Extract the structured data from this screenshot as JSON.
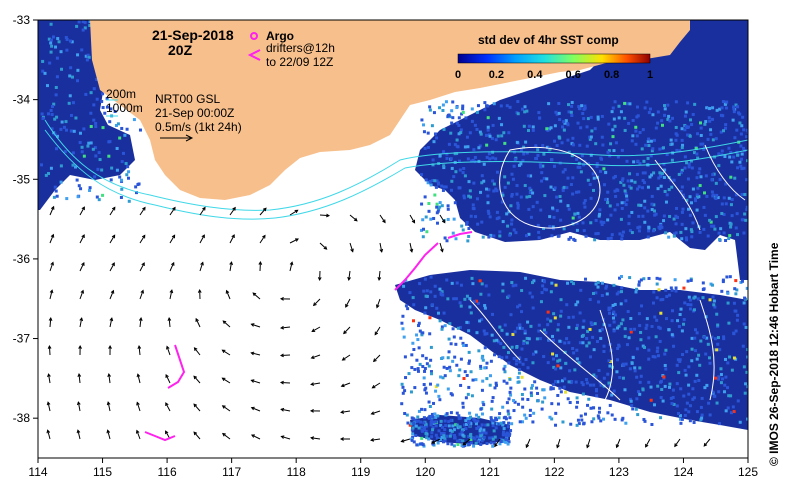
{
  "map": {
    "date_title": "21-Sep-2018",
    "time_title": "20Z",
    "legend_argo_label": "Argo",
    "legend_drifters_label": "drifters@12h",
    "legend_drifters_sub": "to 22/09 12Z",
    "colorbar_title": "std dev of 4hr SST comp",
    "colorbar_ticks": [
      "0",
      "0.2",
      "0.4",
      "0.6",
      "0.8",
      "1"
    ],
    "colorbar_range": [
      0,
      1
    ],
    "depth_200_label": "200m",
    "depth_1000_label": "1000m",
    "nrt_line1": "NRT00 GSL",
    "nrt_line2": "21-Sep 00:00Z",
    "nrt_line3": "0.5m/s (1kt 24h)",
    "credit": "© IMOS 26-Sep-2018 12:46 Hobart Time",
    "x_ticks": [
      "114",
      "115",
      "116",
      "117",
      "118",
      "119",
      "120",
      "121",
      "122",
      "123",
      "124",
      "125"
    ],
    "y_ticks": [
      "-33",
      "-34",
      "-35",
      "-36",
      "-37",
      "-38"
    ],
    "x_range": [
      114,
      125
    ],
    "y_range": [
      -38.5,
      -33
    ],
    "colors": {
      "land": "#f7bf8c",
      "ocean": "#ffffff",
      "sst_dark": "#1a2f9e",
      "sst_mid": "#2a55d8",
      "sst_light": "#3fa0f0",
      "isobath": "#40d8e8",
      "drifter": "#ff22ee"
    }
  }
}
